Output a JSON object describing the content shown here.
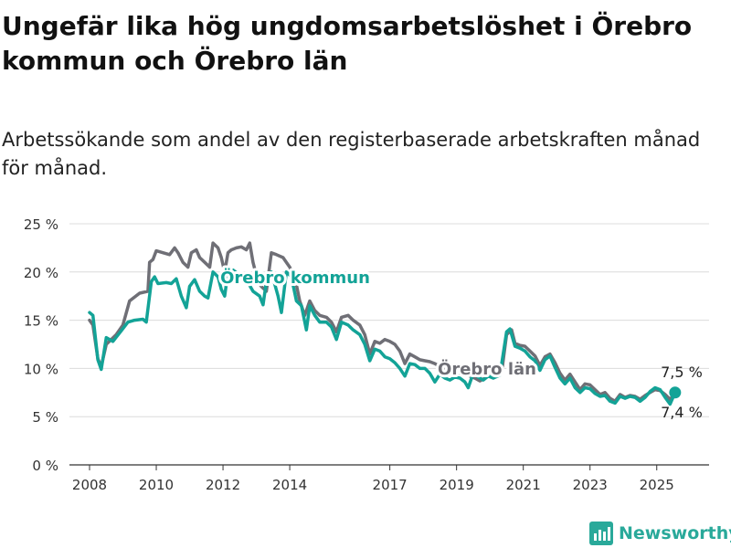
{
  "title": "Ungefär lika hög ungdomsarbetslöshet i Örebro kommun och Örebro län",
  "subtitle": "Arbetssökande som andel av den registerbaserade arbetskraften månad för månad.",
  "brand": {
    "name": "Newsworthy",
    "icon": "newsworthy-chart-icon",
    "color": "#29a99a"
  },
  "chart_data": {
    "type": "line",
    "ylim": [
      0,
      25
    ],
    "xlim": [
      2007.6,
      2026.2
    ],
    "y_ticks": [
      0,
      5,
      10,
      15,
      20,
      25
    ],
    "y_tick_labels": [
      "0 %",
      "5 %",
      "10 %",
      "15 %",
      "20 %",
      "25 %"
    ],
    "x_ticks": [
      2008,
      2010,
      2012,
      2014,
      2017,
      2019,
      2021,
      2023,
      2025
    ],
    "x_tick_labels": [
      "2008",
      "2010",
      "2012",
      "2014",
      "2017",
      "2019",
      "2021",
      "2023",
      "2025"
    ],
    "grid": "horizontal",
    "legend": "inline",
    "series": [
      {
        "name": "Örebro län",
        "color": "#6f6f76",
        "end_label": "7,4 %",
        "points": [
          [
            2008.0,
            15.0
          ],
          [
            2008.1,
            14.5
          ],
          [
            2008.25,
            11.0
          ],
          [
            2008.35,
            10.2
          ],
          [
            2008.5,
            12.5
          ],
          [
            2008.8,
            13.5
          ],
          [
            2009.0,
            14.5
          ],
          [
            2009.2,
            17.0
          ],
          [
            2009.5,
            17.8
          ],
          [
            2009.75,
            18.0
          ],
          [
            2009.8,
            21.0
          ],
          [
            2009.9,
            21.3
          ],
          [
            2010.0,
            22.2
          ],
          [
            2010.2,
            22.0
          ],
          [
            2010.4,
            21.8
          ],
          [
            2010.55,
            22.5
          ],
          [
            2010.65,
            22.0
          ],
          [
            2010.8,
            21.0
          ],
          [
            2010.95,
            20.5
          ],
          [
            2011.05,
            22.0
          ],
          [
            2011.2,
            22.3
          ],
          [
            2011.3,
            21.5
          ],
          [
            2011.45,
            21.0
          ],
          [
            2011.6,
            20.5
          ],
          [
            2011.7,
            23.0
          ],
          [
            2011.85,
            22.5
          ],
          [
            2011.95,
            21.5
          ],
          [
            2012.05,
            20.0
          ],
          [
            2012.15,
            22.0
          ],
          [
            2012.25,
            22.3
          ],
          [
            2012.4,
            22.5
          ],
          [
            2012.55,
            22.6
          ],
          [
            2012.7,
            22.3
          ],
          [
            2012.8,
            23.0
          ],
          [
            2012.9,
            21.0
          ],
          [
            2013.05,
            19.0
          ],
          [
            2013.15,
            18.5
          ],
          [
            2013.3,
            18.0
          ],
          [
            2013.45,
            22.0
          ],
          [
            2013.6,
            21.8
          ],
          [
            2013.8,
            21.5
          ],
          [
            2013.9,
            21.0
          ],
          [
            2014.0,
            20.5
          ],
          [
            2014.15,
            19.5
          ],
          [
            2014.3,
            17.0
          ],
          [
            2014.45,
            15.5
          ],
          [
            2014.6,
            17.0
          ],
          [
            2014.75,
            16.0
          ],
          [
            2014.9,
            15.5
          ],
          [
            2015.1,
            15.3
          ],
          [
            2015.25,
            14.8
          ],
          [
            2015.4,
            13.8
          ],
          [
            2015.55,
            15.3
          ],
          [
            2015.75,
            15.5
          ],
          [
            2015.9,
            15.0
          ],
          [
            2016.1,
            14.5
          ],
          [
            2016.25,
            13.5
          ],
          [
            2016.4,
            11.5
          ],
          [
            2016.55,
            12.8
          ],
          [
            2016.7,
            12.6
          ],
          [
            2016.85,
            13.0
          ],
          [
            2017.0,
            12.8
          ],
          [
            2017.15,
            12.5
          ],
          [
            2017.3,
            11.8
          ],
          [
            2017.45,
            10.5
          ],
          [
            2017.6,
            11.5
          ],
          [
            2017.75,
            11.2
          ],
          [
            2017.9,
            10.9
          ],
          [
            2018.05,
            10.8
          ],
          [
            2018.2,
            10.7
          ],
          [
            2018.35,
            10.5
          ],
          [
            2018.5,
            10.2
          ],
          [
            2018.65,
            9.9
          ],
          [
            2018.8,
            9.7
          ],
          [
            2018.95,
            9.6
          ],
          [
            2019.1,
            9.5
          ],
          [
            2019.25,
            9.4
          ],
          [
            2019.4,
            9.2
          ],
          [
            2019.55,
            9.0
          ],
          [
            2019.7,
            8.7
          ],
          [
            2019.85,
            9.0
          ],
          [
            2020.0,
            9.6
          ],
          [
            2020.15,
            9.5
          ],
          [
            2020.35,
            9.6
          ],
          [
            2020.5,
            13.5
          ],
          [
            2020.65,
            14.0
          ],
          [
            2020.75,
            12.6
          ],
          [
            2020.9,
            12.4
          ],
          [
            2021.05,
            12.3
          ],
          [
            2021.2,
            11.8
          ],
          [
            2021.35,
            11.3
          ],
          [
            2021.5,
            10.3
          ],
          [
            2021.65,
            11.2
          ],
          [
            2021.8,
            11.5
          ],
          [
            2021.95,
            10.6
          ],
          [
            2022.1,
            9.5
          ],
          [
            2022.25,
            8.8
          ],
          [
            2022.4,
            9.4
          ],
          [
            2022.55,
            8.6
          ],
          [
            2022.7,
            7.8
          ],
          [
            2022.85,
            8.4
          ],
          [
            2023.0,
            8.3
          ],
          [
            2023.15,
            7.8
          ],
          [
            2023.3,
            7.3
          ],
          [
            2023.45,
            7.5
          ],
          [
            2023.6,
            6.9
          ],
          [
            2023.75,
            6.6
          ],
          [
            2023.9,
            7.3
          ],
          [
            2024.05,
            7.0
          ],
          [
            2024.2,
            7.2
          ],
          [
            2024.35,
            7.1
          ],
          [
            2024.5,
            6.8
          ],
          [
            2024.65,
            7.2
          ],
          [
            2024.8,
            7.5
          ],
          [
            2024.95,
            7.8
          ],
          [
            2025.1,
            7.7
          ],
          [
            2025.25,
            7.3
          ],
          [
            2025.4,
            6.8
          ],
          [
            2025.55,
            7.4
          ]
        ]
      },
      {
        "name": "Örebro kommun",
        "color": "#13a397",
        "end_label": "7,5 %",
        "points": [
          [
            2008.0,
            15.8
          ],
          [
            2008.1,
            15.5
          ],
          [
            2008.25,
            10.9
          ],
          [
            2008.35,
            9.9
          ],
          [
            2008.5,
            13.2
          ],
          [
            2008.7,
            12.8
          ],
          [
            2008.95,
            13.9
          ],
          [
            2009.15,
            14.8
          ],
          [
            2009.35,
            15.0
          ],
          [
            2009.6,
            15.1
          ],
          [
            2009.7,
            14.8
          ],
          [
            2009.85,
            19.0
          ],
          [
            2009.95,
            19.5
          ],
          [
            2010.05,
            18.8
          ],
          [
            2010.3,
            18.9
          ],
          [
            2010.45,
            18.8
          ],
          [
            2010.6,
            19.3
          ],
          [
            2010.75,
            17.5
          ],
          [
            2010.9,
            16.3
          ],
          [
            2011.0,
            18.5
          ],
          [
            2011.15,
            19.2
          ],
          [
            2011.3,
            18.0
          ],
          [
            2011.45,
            17.5
          ],
          [
            2011.55,
            17.3
          ],
          [
            2011.7,
            20.0
          ],
          [
            2011.85,
            19.5
          ],
          [
            2011.95,
            18.2
          ],
          [
            2012.05,
            17.5
          ],
          [
            2012.15,
            20.0
          ],
          [
            2012.3,
            20.2
          ],
          [
            2012.45,
            19.8
          ],
          [
            2012.6,
            19.6
          ],
          [
            2012.75,
            18.9
          ],
          [
            2012.9,
            18.0
          ],
          [
            2013.1,
            17.5
          ],
          [
            2013.2,
            16.6
          ],
          [
            2013.3,
            19.0
          ],
          [
            2013.45,
            20.0
          ],
          [
            2013.65,
            17.5
          ],
          [
            2013.75,
            15.8
          ],
          [
            2013.9,
            20.0
          ],
          [
            2014.05,
            19.5
          ],
          [
            2014.2,
            17.0
          ],
          [
            2014.35,
            16.5
          ],
          [
            2014.5,
            14.0
          ],
          [
            2014.6,
            16.5
          ],
          [
            2014.75,
            15.5
          ],
          [
            2014.9,
            14.8
          ],
          [
            2015.1,
            14.8
          ],
          [
            2015.25,
            14.3
          ],
          [
            2015.4,
            13.0
          ],
          [
            2015.55,
            14.8
          ],
          [
            2015.75,
            14.5
          ],
          [
            2015.9,
            14.0
          ],
          [
            2016.1,
            13.5
          ],
          [
            2016.25,
            12.5
          ],
          [
            2016.4,
            10.8
          ],
          [
            2016.55,
            12.0
          ],
          [
            2016.7,
            11.8
          ],
          [
            2016.85,
            11.2
          ],
          [
            2017.0,
            11.0
          ],
          [
            2017.15,
            10.6
          ],
          [
            2017.3,
            10.0
          ],
          [
            2017.45,
            9.2
          ],
          [
            2017.6,
            10.5
          ],
          [
            2017.75,
            10.4
          ],
          [
            2017.9,
            10.0
          ],
          [
            2018.05,
            10.0
          ],
          [
            2018.2,
            9.5
          ],
          [
            2018.35,
            8.6
          ],
          [
            2018.5,
            9.4
          ],
          [
            2018.65,
            9.0
          ],
          [
            2018.8,
            8.8
          ],
          [
            2018.95,
            9.1
          ],
          [
            2019.1,
            9.0
          ],
          [
            2019.25,
            8.6
          ],
          [
            2019.35,
            8.0
          ],
          [
            2019.5,
            9.5
          ],
          [
            2019.65,
            9.1
          ],
          [
            2019.8,
            8.8
          ],
          [
            2019.95,
            9.2
          ],
          [
            2020.1,
            9.0
          ],
          [
            2020.3,
            9.3
          ],
          [
            2020.5,
            13.8
          ],
          [
            2020.6,
            14.1
          ],
          [
            2020.75,
            12.3
          ],
          [
            2020.9,
            12.1
          ],
          [
            2021.05,
            11.8
          ],
          [
            2021.2,
            11.2
          ],
          [
            2021.35,
            10.8
          ],
          [
            2021.5,
            9.8
          ],
          [
            2021.65,
            10.9
          ],
          [
            2021.8,
            11.3
          ],
          [
            2021.95,
            10.1
          ],
          [
            2022.1,
            9.0
          ],
          [
            2022.25,
            8.4
          ],
          [
            2022.4,
            9.0
          ],
          [
            2022.55,
            8.0
          ],
          [
            2022.7,
            7.5
          ],
          [
            2022.85,
            8.0
          ],
          [
            2023.0,
            7.9
          ],
          [
            2023.15,
            7.4
          ],
          [
            2023.3,
            7.1
          ],
          [
            2023.45,
            7.2
          ],
          [
            2023.6,
            6.6
          ],
          [
            2023.75,
            6.4
          ],
          [
            2023.9,
            7.1
          ],
          [
            2024.05,
            6.9
          ],
          [
            2024.2,
            7.1
          ],
          [
            2024.35,
            7.0
          ],
          [
            2024.5,
            6.6
          ],
          [
            2024.65,
            7.0
          ],
          [
            2024.8,
            7.6
          ],
          [
            2024.95,
            8.0
          ],
          [
            2025.1,
            7.8
          ],
          [
            2025.25,
            7.0
          ],
          [
            2025.4,
            6.3
          ],
          [
            2025.55,
            7.5
          ]
        ]
      }
    ]
  }
}
